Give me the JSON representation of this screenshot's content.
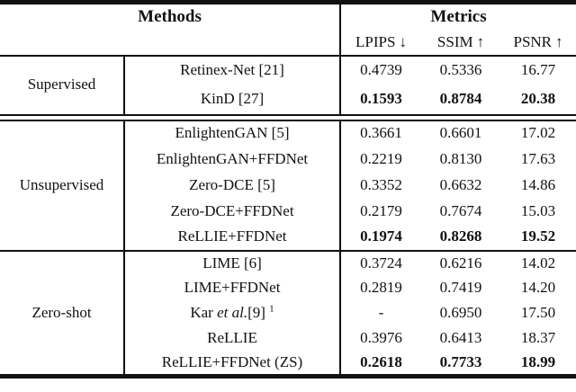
{
  "page": {
    "background_color": "#ffffff",
    "rule_color": "#111111",
    "text_color": "#111111"
  },
  "table": {
    "header": {
      "methods_label": "Methods",
      "metrics_label": "Metrics",
      "metric_columns": [
        {
          "label": "LPIPS",
          "arrow": "↓"
        },
        {
          "label": "SSIM",
          "arrow": "↑"
        },
        {
          "label": "PSNR",
          "arrow": "↑"
        }
      ]
    },
    "groups": [
      {
        "label": "Supervised",
        "rows": [
          {
            "method": "Retinex-Net [21]",
            "lpips": "0.4739",
            "ssim": "0.5336",
            "psnr": "16.77",
            "bold_values": false
          },
          {
            "method": "KinD [27]",
            "lpips": "0.1593",
            "ssim": "0.8784",
            "psnr": "20.38",
            "bold_values": true
          }
        ]
      },
      {
        "label": "Unsupervised",
        "rows": [
          {
            "method": "EnlightenGAN [5]",
            "lpips": "0.3661",
            "ssim": "0.6601",
            "psnr": "17.02",
            "bold_values": false
          },
          {
            "method": "EnlightenGAN+FFDNet",
            "lpips": "0.2219",
            "ssim": "0.8130",
            "psnr": "17.63",
            "bold_values": false
          },
          {
            "method": "Zero-DCE [5]",
            "lpips": "0.3352",
            "ssim": "0.6632",
            "psnr": "14.86",
            "bold_values": false
          },
          {
            "method": "Zero-DCE+FFDNet",
            "lpips": "0.2179",
            "ssim": "0.7674",
            "psnr": "15.03",
            "bold_values": false
          },
          {
            "method": "ReLLIE+FFDNet",
            "lpips": "0.1974",
            "ssim": "0.8268",
            "psnr": "19.52",
            "bold_values": true
          }
        ]
      },
      {
        "label": "Zero-shot",
        "rows": [
          {
            "method": "LIME [6]",
            "lpips": "0.3724",
            "ssim": "0.6216",
            "psnr": "14.02",
            "bold_values": false
          },
          {
            "method": "LIME+FFDNet",
            "lpips": "0.2819",
            "ssim": "0.7419",
            "psnr": "14.20",
            "bold_values": false
          },
          {
            "method": "Kar et al.[9] 1",
            "parts": {
              "prefix": "Kar ",
              "italic": "et al.",
              "suffix": "[9]",
              "sup": "1"
            },
            "lpips": "-",
            "ssim": "0.6950",
            "psnr": "17.50",
            "bold_values": false
          },
          {
            "method": "ReLLIE",
            "lpips": "0.3976",
            "ssim": "0.6413",
            "psnr": "18.37",
            "bold_values": false
          },
          {
            "method": "ReLLIE+FFDNet (ZS)",
            "lpips": "0.2618",
            "ssim": "0.7733",
            "psnr": "18.99",
            "bold_values": true
          }
        ]
      }
    ]
  }
}
